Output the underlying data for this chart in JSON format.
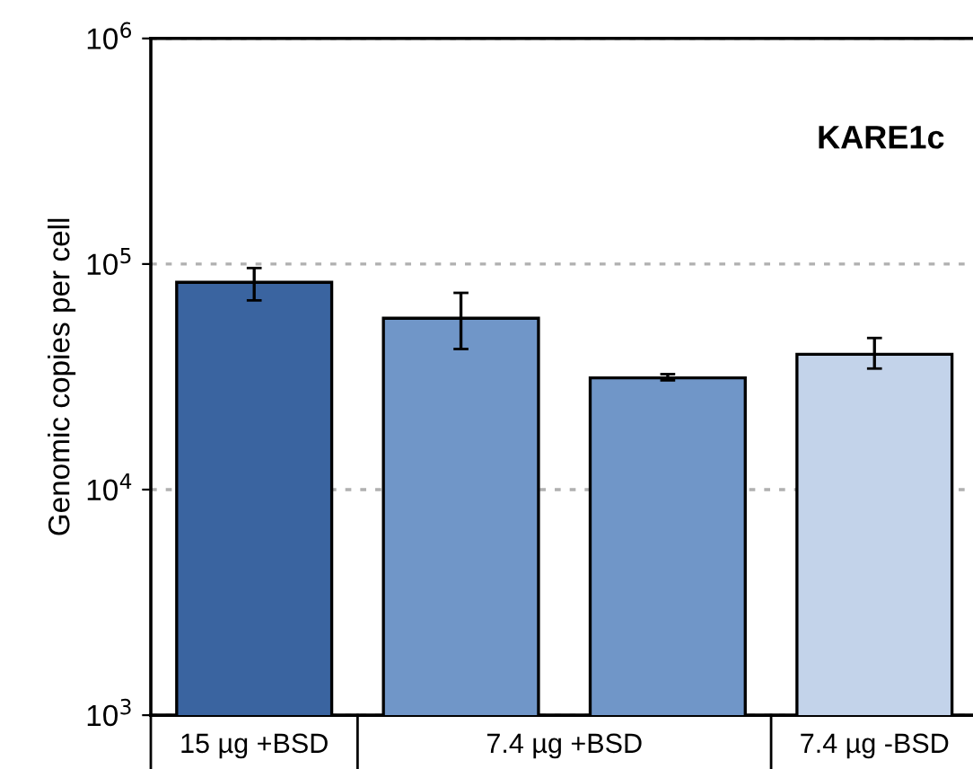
{
  "chart_data": {
    "type": "bar",
    "ylabel": "Genomic copies per cell",
    "categories": [
      "15 µg +BSD",
      "7.4 µg +BSD",
      null,
      "7.4 µg -BSD"
    ],
    "values": [
      83000,
      57500,
      31300,
      39800
    ],
    "errors": [
      [
        69000,
        96000
      ],
      [
        42000,
        74500
      ],
      [
        30500,
        32500
      ],
      [
        34400,
        47000
      ]
    ],
    "colors": [
      "#3a64a0",
      "#7096c8",
      "#7096c8",
      "#c3d3ea"
    ],
    "log": "y",
    "ylim": [
      1000,
      1000000
    ],
    "yticks": [
      {
        "value": 1000,
        "label": "10$^{3}$"
      },
      {
        "value": 10000,
        "label": "10$^{4}$"
      },
      {
        "value": 100000,
        "label": "10$^{5}$"
      },
      {
        "value": 1000000,
        "label": "10$^{6}$"
      }
    ],
    "grid": "y",
    "annotations": [
      "KARE1c"
    ]
  }
}
